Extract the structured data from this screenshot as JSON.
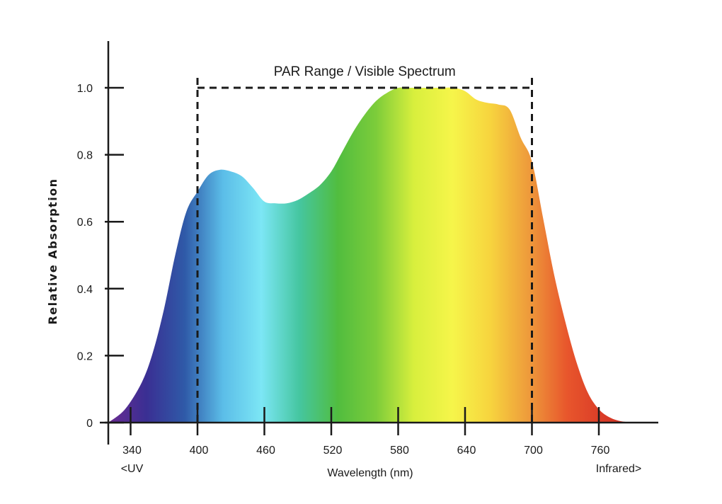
{
  "chart_data": {
    "type": "area",
    "title": "",
    "ylabel": "Relative Absorption",
    "xlabel": "Wavelength (nm)",
    "xlim": [
      320,
      800
    ],
    "ylim": [
      0,
      1.0
    ],
    "x_ticks": [
      340,
      400,
      460,
      520,
      580,
      640,
      700,
      760
    ],
    "x_tick_labels": [
      "340",
      "400",
      "460",
      "520",
      "580",
      "640",
      "700",
      "760"
    ],
    "y_ticks": [
      0,
      0.2,
      0.4,
      0.6,
      0.8,
      1.0
    ],
    "y_tick_labels": [
      "0",
      "0.2",
      "0.4",
      "0.6",
      "0.8",
      "1.0"
    ],
    "x_end_labels": {
      "left": "<UV",
      "right": "Infrared>"
    },
    "range_annotation": {
      "label": "PAR Range / Visible Spectrum",
      "x_start": 400,
      "x_end": 700,
      "y": 1.0
    },
    "series": [
      {
        "x": [
          320,
          335,
          350,
          360,
          370,
          380,
          390,
          400,
          410,
          420,
          430,
          440,
          450,
          460,
          470,
          480,
          490,
          500,
          510,
          520,
          530,
          540,
          550,
          560,
          570,
          580,
          590,
          600,
          610,
          620,
          630,
          640,
          650,
          660,
          670,
          680,
          690,
          700,
          710,
          720,
          730,
          740,
          750,
          760,
          770,
          780,
          790,
          800
        ],
        "y": [
          0.0,
          0.04,
          0.12,
          0.21,
          0.34,
          0.5,
          0.63,
          0.69,
          0.74,
          0.755,
          0.75,
          0.735,
          0.7,
          0.66,
          0.655,
          0.655,
          0.665,
          0.685,
          0.71,
          0.75,
          0.81,
          0.87,
          0.92,
          0.96,
          0.985,
          1.0,
          1.0,
          1.0,
          1.0,
          1.0,
          1.0,
          0.99,
          0.965,
          0.955,
          0.95,
          0.935,
          0.85,
          0.78,
          0.61,
          0.44,
          0.3,
          0.18,
          0.09,
          0.04,
          0.015,
          0.004,
          0.001,
          0.0
        ]
      }
    ],
    "gradient_colors": [
      "#6a2b91",
      "#3a2f93",
      "#2f5aa8",
      "#5bbde8",
      "#7ce6f5",
      "#45c6a0",
      "#51bd3f",
      "#7ccc3a",
      "#d8ef3d",
      "#f6f54a",
      "#f7d43e",
      "#ee9a3b",
      "#e8562c",
      "#d93a27",
      "#c92f23"
    ],
    "grid": false,
    "legend": "none"
  }
}
